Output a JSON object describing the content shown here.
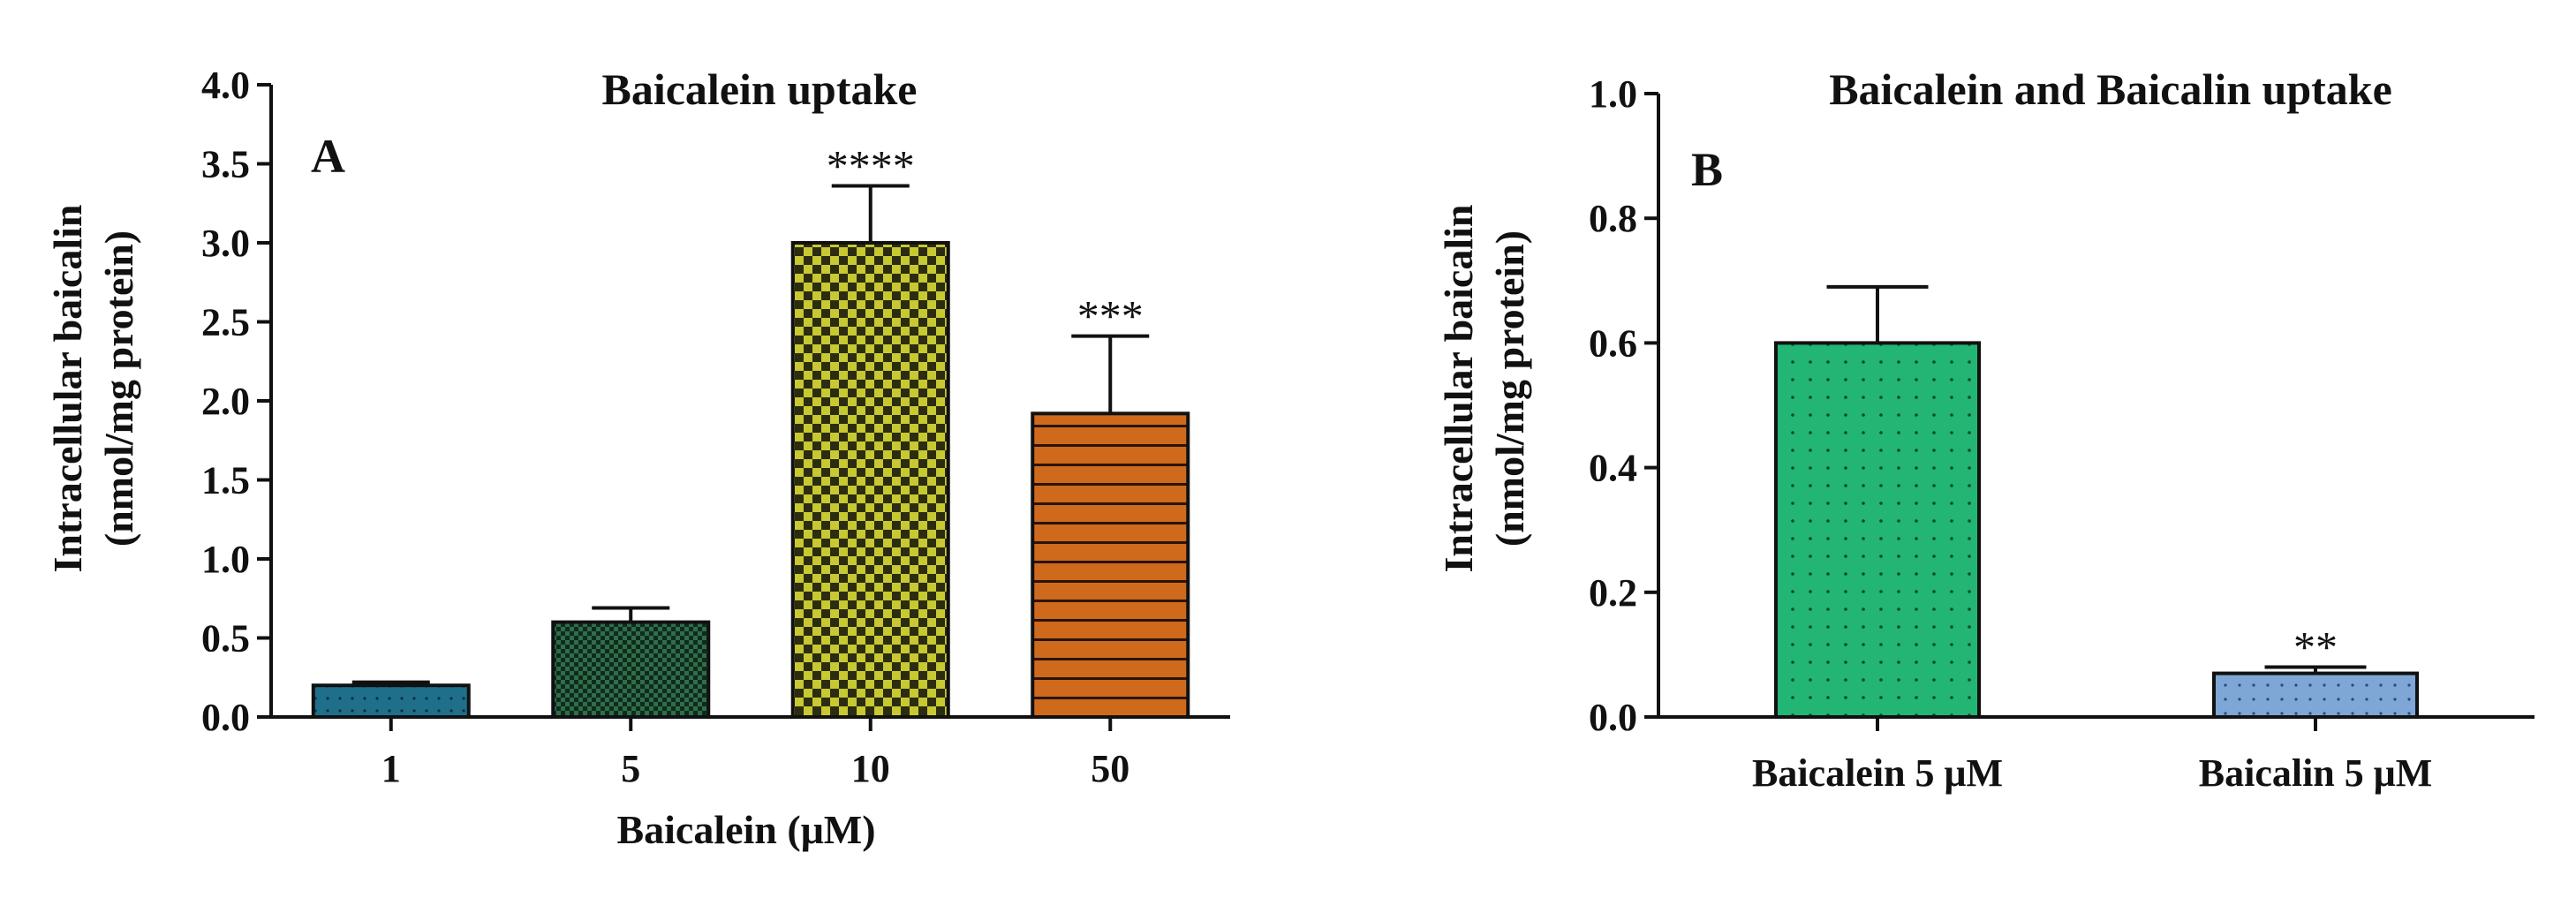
{
  "chart_data": [
    {
      "type": "bar",
      "panel": "A",
      "title": "Baicalein uptake",
      "xlabel": "Baicalein (μM)",
      "ylabel_line1": "Intracellular baicalin",
      "ylabel_line2": "(nmol/mg protein)",
      "ylim": [
        0,
        4.0
      ],
      "yticks": [
        "0.0",
        "0.5",
        "1.0",
        "1.5",
        "2.0",
        "2.5",
        "3.0",
        "3.5",
        "4.0"
      ],
      "categories": [
        "1",
        "5",
        "10",
        "50"
      ],
      "values": [
        0.2,
        0.6,
        3.0,
        1.92
      ],
      "errors": [
        0.02,
        0.09,
        0.36,
        0.49
      ],
      "significance": [
        "",
        "",
        "****",
        "***"
      ],
      "colors": [
        "#1f6f8b",
        "#2f6e4a",
        "#c8c832",
        "#cf6a1c"
      ],
      "patterns": [
        "dots",
        "checker",
        "checker",
        "hlines"
      ]
    },
    {
      "type": "bar",
      "panel": "B",
      "title": "Baicalein and Baicalin uptake",
      "xlabel": "",
      "ylabel_line1": "Intracellular baicalin",
      "ylabel_line2": "(nmol/mg protein)",
      "ylim": [
        0,
        1.0
      ],
      "yticks": [
        "0.0",
        "0.2",
        "0.4",
        "0.6",
        "0.8",
        "1.0"
      ],
      "categories": [
        "Baicalein 5 μM",
        "Baicalin 5 μM"
      ],
      "values": [
        0.6,
        0.07
      ],
      "errors": [
        0.09,
        0.01
      ],
      "significance": [
        "",
        "**"
      ],
      "colors": [
        "#22b573",
        "#7ea6d6"
      ],
      "patterns": [
        "dots",
        "dots"
      ]
    }
  ]
}
